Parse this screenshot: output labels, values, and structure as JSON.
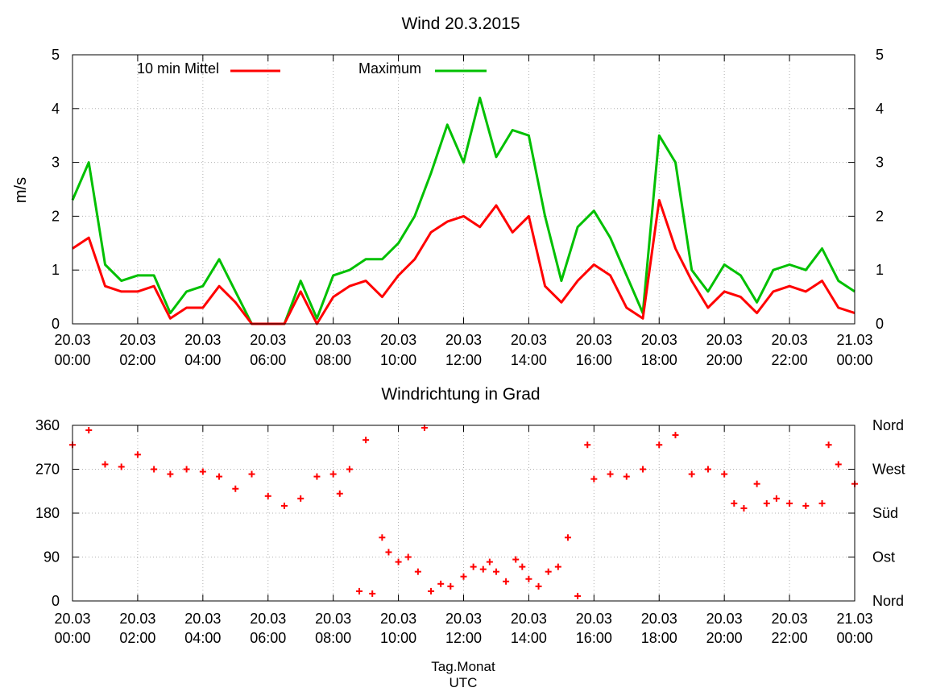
{
  "chart_data": [
    {
      "type": "line",
      "title": "Wind 20.3.2015",
      "ylabel": "m/s",
      "xlabel": "",
      "ylim": [
        0,
        5
      ],
      "yticks": [
        "0",
        "1",
        "2",
        "3",
        "4",
        "5"
      ],
      "x_range_hours": [
        0,
        24
      ],
      "x_tick_hours": [
        0,
        2,
        4,
        6,
        8,
        10,
        12,
        14,
        16,
        18,
        20,
        22,
        24
      ],
      "x_tick_labels": [
        [
          "20.03",
          "00:00"
        ],
        [
          "20.03",
          "02:00"
        ],
        [
          "20.03",
          "04:00"
        ],
        [
          "20.03",
          "06:00"
        ],
        [
          "20.03",
          "08:00"
        ],
        [
          "20.03",
          "10:00"
        ],
        [
          "20.03",
          "12:00"
        ],
        [
          "20.03",
          "14:00"
        ],
        [
          "20.03",
          "16:00"
        ],
        [
          "20.03",
          "18:00"
        ],
        [
          "20.03",
          "20:00"
        ],
        [
          "20.03",
          "22:00"
        ],
        [
          "21.03",
          "00:00"
        ]
      ],
      "grid": true,
      "legend": "top-left",
      "x_hours": [
        0,
        0.5,
        1,
        1.5,
        2,
        2.5,
        3,
        3.5,
        4,
        4.5,
        5,
        5.5,
        6,
        6.5,
        7,
        7.5,
        8,
        8.5,
        9,
        9.5,
        10,
        10.5,
        11,
        11.5,
        12,
        12.5,
        13,
        13.5,
        14,
        14.5,
        15,
        15.5,
        16,
        16.5,
        17,
        17.5,
        18,
        18.5,
        19,
        19.5,
        20,
        20.5,
        21,
        21.5,
        22,
        22.5,
        23,
        23.5,
        24
      ],
      "series": [
        {
          "name": "10 min Mittel",
          "color": "#ff0000",
          "values": [
            1.4,
            1.6,
            0.7,
            0.6,
            0.6,
            0.7,
            0.1,
            0.3,
            0.3,
            0.7,
            0.4,
            0.0,
            0.0,
            0.0,
            0.6,
            0.0,
            0.5,
            0.7,
            0.8,
            0.5,
            0.9,
            1.2,
            1.7,
            1.9,
            2.0,
            1.8,
            2.2,
            1.7,
            2.0,
            0.7,
            0.4,
            0.8,
            1.1,
            0.9,
            0.3,
            0.1,
            2.3,
            1.4,
            0.8,
            0.3,
            0.6,
            0.5,
            0.2,
            0.6,
            0.7,
            0.6,
            0.8,
            0.3,
            0.2
          ]
        },
        {
          "name": "Maximum",
          "color": "#00c000",
          "values": [
            2.3,
            3.0,
            1.1,
            0.8,
            0.9,
            0.9,
            0.2,
            0.6,
            0.7,
            1.2,
            0.6,
            0.0,
            0.0,
            0.0,
            0.8,
            0.1,
            0.9,
            1.0,
            1.2,
            1.2,
            1.5,
            2.0,
            2.8,
            3.7,
            3.0,
            4.2,
            3.1,
            3.6,
            3.5,
            2.0,
            0.8,
            1.8,
            2.1,
            1.6,
            0.9,
            0.2,
            3.5,
            3.0,
            1.0,
            0.6,
            1.1,
            0.9,
            0.4,
            1.0,
            1.1,
            1.0,
            1.4,
            0.8,
            0.6
          ]
        }
      ]
    },
    {
      "type": "scatter",
      "title": "Windrichtung in Grad",
      "xlabel": "Tag.Monat",
      "xlabel2": "UTC",
      "ylim": [
        0,
        360
      ],
      "yticks": [
        "0",
        "90",
        "180",
        "270",
        "360"
      ],
      "y2ticks": [
        "Nord",
        "Ost",
        "Süd",
        "West",
        "Nord"
      ],
      "x_range_hours": [
        0,
        24
      ],
      "x_tick_hours": [
        0,
        2,
        4,
        6,
        8,
        10,
        12,
        14,
        16,
        18,
        20,
        22,
        24
      ],
      "x_tick_labels": [
        [
          "20.03",
          "00:00"
        ],
        [
          "20.03",
          "02:00"
        ],
        [
          "20.03",
          "04:00"
        ],
        [
          "20.03",
          "06:00"
        ],
        [
          "20.03",
          "08:00"
        ],
        [
          "20.03",
          "10:00"
        ],
        [
          "20.03",
          "12:00"
        ],
        [
          "20.03",
          "14:00"
        ],
        [
          "20.03",
          "16:00"
        ],
        [
          "20.03",
          "18:00"
        ],
        [
          "20.03",
          "20:00"
        ],
        [
          "20.03",
          "22:00"
        ],
        [
          "21.03",
          "00:00"
        ]
      ],
      "grid": true,
      "color": "#ff0000",
      "x_hours": [
        0,
        0.5,
        1,
        1.5,
        2,
        2.5,
        3,
        3.5,
        4,
        4.5,
        5,
        5.5,
        6,
        6.5,
        7,
        7.5,
        8,
        8.2,
        8.5,
        8.8,
        9,
        9.2,
        9.5,
        9.7,
        10,
        10.3,
        10.6,
        10.8,
        11,
        11.3,
        11.6,
        12,
        12.3,
        12.6,
        12.8,
        13,
        13.3,
        13.6,
        13.8,
        14,
        14.3,
        14.6,
        14.9,
        15.2,
        15.5,
        15.8,
        16,
        16.5,
        17,
        17.5,
        18,
        18.5,
        19,
        19.5,
        20,
        20.3,
        20.6,
        21,
        21.3,
        21.6,
        22,
        22.5,
        23,
        23.2,
        23.5,
        24
      ],
      "values": [
        320,
        350,
        280,
        275,
        300,
        270,
        260,
        270,
        265,
        255,
        230,
        260,
        215,
        195,
        210,
        255,
        260,
        220,
        270,
        20,
        330,
        15,
        130,
        100,
        80,
        90,
        60,
        355,
        20,
        35,
        30,
        50,
        70,
        65,
        80,
        60,
        40,
        85,
        70,
        45,
        30,
        60,
        70,
        130,
        10,
        320,
        250,
        260,
        255,
        270,
        320,
        340,
        260,
        270,
        260,
        200,
        190,
        240,
        200,
        210,
        200,
        195,
        200,
        320,
        280,
        240
      ]
    }
  ]
}
